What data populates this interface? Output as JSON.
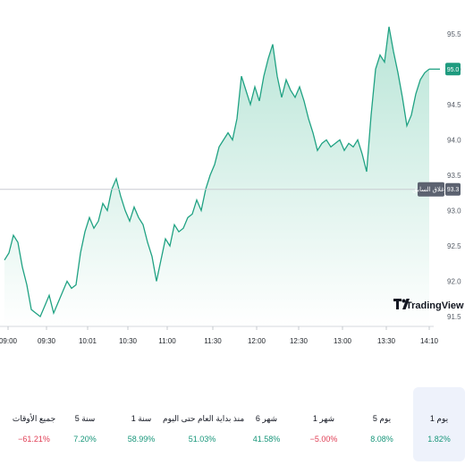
{
  "chart_data": {
    "type": "area",
    "x_ticks": [
      "09:00",
      "09:30",
      "10:01",
      "10:30",
      "11:00",
      "11:30",
      "12:00",
      "12:30",
      "13:00",
      "13:30",
      "14:10"
    ],
    "y_ticks": [
      91.5,
      92.0,
      92.5,
      93.0,
      93.5,
      94.0,
      94.5,
      95.0,
      95.5
    ],
    "ylim": [
      91.45,
      95.75
    ],
    "points": [
      [
        0,
        92.3
      ],
      [
        1,
        92.4
      ],
      [
        2,
        92.65
      ],
      [
        3,
        92.55
      ],
      [
        4,
        92.2
      ],
      [
        5,
        91.95
      ],
      [
        6,
        91.6
      ],
      [
        7,
        91.55
      ],
      [
        8,
        91.5
      ],
      [
        9,
        91.65
      ],
      [
        10,
        91.8
      ],
      [
        11,
        91.55
      ],
      [
        12,
        91.7
      ],
      [
        13,
        91.85
      ],
      [
        14,
        92.0
      ],
      [
        15,
        91.9
      ],
      [
        16,
        91.95
      ],
      [
        17,
        92.4
      ],
      [
        18,
        92.7
      ],
      [
        19,
        92.9
      ],
      [
        20,
        92.75
      ],
      [
        21,
        92.85
      ],
      [
        22,
        93.1
      ],
      [
        23,
        93.0
      ],
      [
        24,
        93.3
      ],
      [
        25,
        93.45
      ],
      [
        26,
        93.2
      ],
      [
        27,
        93.0
      ],
      [
        28,
        92.85
      ],
      [
        29,
        93.05
      ],
      [
        30,
        92.9
      ],
      [
        31,
        92.8
      ],
      [
        32,
        92.55
      ],
      [
        33,
        92.35
      ],
      [
        34,
        92.0
      ],
      [
        35,
        92.3
      ],
      [
        36,
        92.6
      ],
      [
        37,
        92.5
      ],
      [
        38,
        92.8
      ],
      [
        39,
        92.7
      ],
      [
        40,
        92.75
      ],
      [
        41,
        92.9
      ],
      [
        42,
        92.95
      ],
      [
        43,
        93.15
      ],
      [
        44,
        93.0
      ],
      [
        45,
        93.3
      ],
      [
        46,
        93.5
      ],
      [
        47,
        93.65
      ],
      [
        48,
        93.9
      ],
      [
        49,
        94.0
      ],
      [
        50,
        94.1
      ],
      [
        51,
        94.0
      ],
      [
        52,
        94.3
      ],
      [
        53,
        94.9
      ],
      [
        54,
        94.7
      ],
      [
        55,
        94.5
      ],
      [
        56,
        94.75
      ],
      [
        57,
        94.55
      ],
      [
        58,
        94.9
      ],
      [
        59,
        95.15
      ],
      [
        60,
        95.35
      ],
      [
        61,
        94.9
      ],
      [
        62,
        94.6
      ],
      [
        63,
        94.85
      ],
      [
        64,
        94.7
      ],
      [
        65,
        94.6
      ],
      [
        66,
        94.75
      ],
      [
        67,
        94.55
      ],
      [
        68,
        94.3
      ],
      [
        69,
        94.1
      ],
      [
        70,
        93.85
      ],
      [
        71,
        93.95
      ],
      [
        72,
        94.0
      ],
      [
        73,
        93.9
      ],
      [
        74,
        93.95
      ],
      [
        75,
        94.0
      ],
      [
        76,
        93.85
      ],
      [
        77,
        93.95
      ],
      [
        78,
        93.9
      ],
      [
        79,
        94.0
      ],
      [
        80,
        93.8
      ],
      [
        81,
        93.55
      ],
      [
        82,
        94.35
      ],
      [
        83,
        95.0
      ],
      [
        84,
        95.2
      ],
      [
        85,
        95.1
      ],
      [
        86,
        95.6
      ],
      [
        87,
        95.25
      ],
      [
        88,
        94.95
      ],
      [
        89,
        94.6
      ],
      [
        90,
        94.2
      ],
      [
        91,
        94.35
      ],
      [
        92,
        94.65
      ],
      [
        93,
        94.85
      ],
      [
        94,
        94.95
      ],
      [
        95,
        95.0
      ]
    ],
    "reference_line": {
      "label": "الإغلاق السابق",
      "value": 93.3,
      "value_text": "93.3"
    },
    "last_value": {
      "value": 95.0,
      "value_text": "95.0"
    },
    "colors": {
      "line": "#20a283",
      "fill_top": "#b9e5d7",
      "fill_bottom": "#ffffff",
      "badge": "#1f9b7f",
      "ref_badge": "#5c6270"
    }
  },
  "logo": {
    "text": "TradingView",
    "mark": "TV"
  },
  "periods": [
    {
      "label": "جميع الأوقات",
      "value": "‎−61.21%",
      "tone": "negative"
    },
    {
      "label": "5 سنة",
      "value": "7.20%",
      "tone": "positive"
    },
    {
      "label": "1 سنة",
      "value": "58.99%",
      "tone": "positive"
    },
    {
      "label": "منذ بداية العام حتى اليوم",
      "value": "51.03%",
      "tone": "positive"
    },
    {
      "label": "6 شهر",
      "value": "41.58%",
      "tone": "positive"
    },
    {
      "label": "1 شهر",
      "value": "‎−5.00%",
      "tone": "negative"
    },
    {
      "label": "5 يوم",
      "value": "8.08%",
      "tone": "positive"
    },
    {
      "label": "1 يوم",
      "value": "1.82%",
      "tone": "positive",
      "active": true
    }
  ],
  "tone_colors": {
    "positive": "#17967a",
    "negative": "#e03d54"
  }
}
